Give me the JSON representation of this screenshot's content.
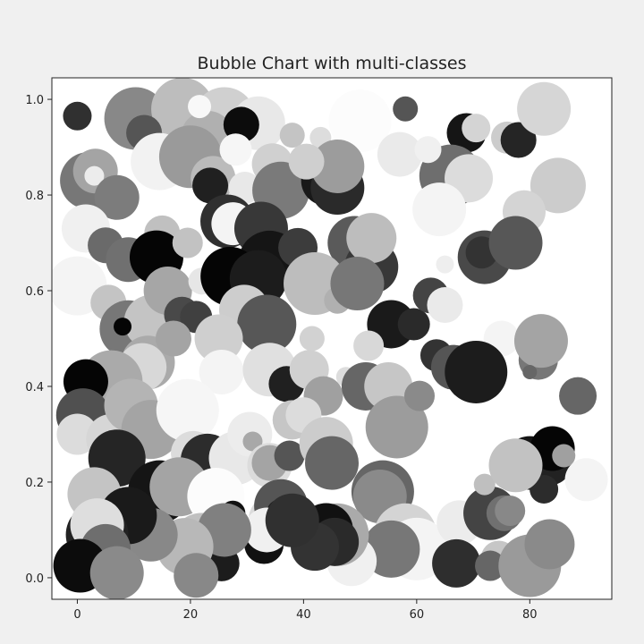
{
  "chart_data": {
    "type": "scatter",
    "variant": "bubble",
    "title": "Bubble Chart with multi-classes",
    "xlabel": "",
    "ylabel": "",
    "xlim": [
      -4.5,
      94.5
    ],
    "ylim": [
      -0.045,
      1.045
    ],
    "xticks": [
      0,
      20,
      40,
      60,
      80
    ],
    "yticks": [
      0.0,
      0.2,
      0.4,
      0.6,
      0.8,
      1.0
    ],
    "ytick_labels": [
      "0.0",
      "0.2",
      "0.4",
      "0.6",
      "0.8",
      "1.0"
    ],
    "grid": false,
    "legend": "none",
    "colors": {
      "figure_bg": "#f0f0f0",
      "axes_bg": "#ffffff",
      "axis": "#222222"
    },
    "bubbles": [
      {
        "x": 10.3,
        "y": 0.96,
        "r": 35,
        "gray": "#888888"
      },
      {
        "x": 18.6,
        "y": 0.98,
        "r": 35,
        "gray": "#bdbdbd"
      },
      {
        "x": 26.0,
        "y": 0.96,
        "r": 35,
        "gray": "#d0d0d0"
      },
      {
        "x": 32.0,
        "y": 0.95,
        "r": 30,
        "gray": "#e8e8e8"
      },
      {
        "x": 11.8,
        "y": 0.93,
        "r": 20,
        "gray": "#555555"
      },
      {
        "x": 23.0,
        "y": 0.92,
        "r": 30,
        "gray": "#b0b0b0"
      },
      {
        "x": 29.0,
        "y": 0.947,
        "r": 20,
        "gray": "#0c0c0c"
      },
      {
        "x": 21.6,
        "y": 0.985,
        "r": 13,
        "gray": "#f8f8f8"
      },
      {
        "x": 0.0,
        "y": 0.965,
        "r": 16,
        "gray": "#303030"
      },
      {
        "x": 58.0,
        "y": 0.98,
        "r": 14,
        "gray": "#555555"
      },
      {
        "x": 50.0,
        "y": 0.955,
        "r": 35,
        "gray": "#fcfcfc"
      },
      {
        "x": 43.0,
        "y": 0.92,
        "r": 12,
        "gray": "#dddddd"
      },
      {
        "x": 38.0,
        "y": 0.925,
        "r": 14,
        "gray": "#c4c4c4"
      },
      {
        "x": 68.8,
        "y": 0.93,
        "r": 22,
        "gray": "#151515"
      },
      {
        "x": 70.5,
        "y": 0.94,
        "r": 16,
        "gray": "#d4d4d4"
      },
      {
        "x": 76.0,
        "y": 0.92,
        "r": 18,
        "gray": "#cccccc"
      },
      {
        "x": 78.0,
        "y": 0.915,
        "r": 20,
        "gray": "#252525"
      },
      {
        "x": 82.5,
        "y": 0.98,
        "r": 30,
        "gray": "#d6d6d6"
      },
      {
        "x": 85.0,
        "y": 0.82,
        "r": 31,
        "gray": "#cccccc"
      },
      {
        "x": 79.0,
        "y": 0.765,
        "r": 24,
        "gray": "#d4d4d4"
      },
      {
        "x": 66.0,
        "y": 0.84,
        "r": 35,
        "gray": "#6e6e6e"
      },
      {
        "x": 69.2,
        "y": 0.835,
        "r": 27,
        "gray": "#dcdcdc"
      },
      {
        "x": 64.0,
        "y": 0.77,
        "r": 30,
        "gray": "#f4f4f4"
      },
      {
        "x": 57.0,
        "y": 0.885,
        "r": 25,
        "gray": "#eaeaea"
      },
      {
        "x": 62.0,
        "y": 0.895,
        "r": 15,
        "gray": "#f0f0f0"
      },
      {
        "x": 2.0,
        "y": 0.83,
        "r": 32,
        "gray": "#777777"
      },
      {
        "x": 3.2,
        "y": 0.85,
        "r": 25,
        "gray": "#a4a4a4"
      },
      {
        "x": 3.0,
        "y": 0.84,
        "r": 11,
        "gray": "#ececec"
      },
      {
        "x": 7.0,
        "y": 0.795,
        "r": 25,
        "gray": "#7c7c7c"
      },
      {
        "x": 14.5,
        "y": 0.87,
        "r": 32,
        "gray": "#f2f2f2"
      },
      {
        "x": 20.0,
        "y": 0.88,
        "r": 35,
        "gray": "#9a9a9a"
      },
      {
        "x": 24.0,
        "y": 0.835,
        "r": 25,
        "gray": "#bbbbbb"
      },
      {
        "x": 23.5,
        "y": 0.82,
        "r": 20,
        "gray": "#202020"
      },
      {
        "x": 28.0,
        "y": 0.895,
        "r": 18,
        "gray": "#f6f6f6"
      },
      {
        "x": 29.6,
        "y": 0.815,
        "r": 18,
        "gray": "#e8e8e8"
      },
      {
        "x": 34.5,
        "y": 0.865,
        "r": 23,
        "gray": "#d0d0d0"
      },
      {
        "x": 36.0,
        "y": 0.81,
        "r": 32,
        "gray": "#7a7a7a"
      },
      {
        "x": 44.0,
        "y": 0.83,
        "r": 28,
        "gray": "#191919"
      },
      {
        "x": 46.0,
        "y": 0.815,
        "r": 30,
        "gray": "#2a2a2a"
      },
      {
        "x": 46.0,
        "y": 0.86,
        "r": 30,
        "gray": "#9c9c9c"
      },
      {
        "x": 40.5,
        "y": 0.87,
        "r": 20,
        "gray": "#cfcfcf"
      },
      {
        "x": 1.5,
        "y": 0.73,
        "r": 27,
        "gray": "#f0f0f0"
      },
      {
        "x": 5.0,
        "y": 0.695,
        "r": 20,
        "gray": "#6a6a6a"
      },
      {
        "x": 9.0,
        "y": 0.665,
        "r": 25,
        "gray": "#707070"
      },
      {
        "x": 15.0,
        "y": 0.72,
        "r": 20,
        "gray": "#c0c0c0"
      },
      {
        "x": 14.0,
        "y": 0.67,
        "r": 30,
        "gray": "#050505"
      },
      {
        "x": 19.5,
        "y": 0.7,
        "r": 17,
        "gray": "#c2c2c2"
      },
      {
        "x": 26.5,
        "y": 0.745,
        "r": 30,
        "gray": "#303030"
      },
      {
        "x": 27.5,
        "y": 0.74,
        "r": 24,
        "gray": "#f4f4f4"
      },
      {
        "x": 32.5,
        "y": 0.73,
        "r": 30,
        "gray": "#383838"
      },
      {
        "x": 34.0,
        "y": 0.66,
        "r": 35,
        "gray": "#151515"
      },
      {
        "x": 39.0,
        "y": 0.69,
        "r": 22,
        "gray": "#3c3c3c"
      },
      {
        "x": 49.0,
        "y": 0.7,
        "r": 30,
        "gray": "#5a5a5a"
      },
      {
        "x": 52.0,
        "y": 0.65,
        "r": 30,
        "gray": "#383838"
      },
      {
        "x": 52.0,
        "y": 0.71,
        "r": 28,
        "gray": "#bdbdbd"
      },
      {
        "x": 72.0,
        "y": 0.67,
        "r": 30,
        "gray": "#494949"
      },
      {
        "x": 71.5,
        "y": 0.68,
        "r": 18,
        "gray": "#333333"
      },
      {
        "x": 77.5,
        "y": 0.7,
        "r": 30,
        "gray": "#575757"
      },
      {
        "x": 65.0,
        "y": 0.655,
        "r": 10,
        "gray": "#eeeeee"
      },
      {
        "x": 0.0,
        "y": 0.61,
        "r": 33,
        "gray": "#f4f4f4"
      },
      {
        "x": 5.5,
        "y": 0.575,
        "r": 20,
        "gray": "#c4c4c4"
      },
      {
        "x": 9.0,
        "y": 0.52,
        "r": 32,
        "gray": "#777777"
      },
      {
        "x": 13.0,
        "y": 0.535,
        "r": 30,
        "gray": "#c4c4c4"
      },
      {
        "x": 16.0,
        "y": 0.6,
        "r": 27,
        "gray": "#a6a6a6"
      },
      {
        "x": 18.5,
        "y": 0.55,
        "r": 20,
        "gray": "#494949"
      },
      {
        "x": 21.0,
        "y": 0.545,
        "r": 18,
        "gray": "#404040"
      },
      {
        "x": 22.0,
        "y": 0.62,
        "r": 15,
        "gray": "#e6e6e6"
      },
      {
        "x": 27.0,
        "y": 0.63,
        "r": 33,
        "gray": "#050505"
      },
      {
        "x": 32.0,
        "y": 0.625,
        "r": 32,
        "gray": "#1c1c1c"
      },
      {
        "x": 29.5,
        "y": 0.56,
        "r": 28,
        "gray": "#cdcdcd"
      },
      {
        "x": 33.5,
        "y": 0.53,
        "r": 33,
        "gray": "#575757"
      },
      {
        "x": 42.0,
        "y": 0.615,
        "r": 35,
        "gray": "#bdbdbd"
      },
      {
        "x": 46.0,
        "y": 0.58,
        "r": 15,
        "gray": "#b0b0b0"
      },
      {
        "x": 49.5,
        "y": 0.615,
        "r": 30,
        "gray": "#777777"
      },
      {
        "x": 55.5,
        "y": 0.53,
        "r": 27,
        "gray": "#1a1a1a"
      },
      {
        "x": 59.5,
        "y": 0.53,
        "r": 18,
        "gray": "#2a2a2a"
      },
      {
        "x": 62.5,
        "y": 0.59,
        "r": 20,
        "gray": "#444444"
      },
      {
        "x": 65.0,
        "y": 0.57,
        "r": 20,
        "gray": "#eaeaea"
      },
      {
        "x": 75.0,
        "y": 0.5,
        "r": 20,
        "gray": "#f4f4f4"
      },
      {
        "x": 83.0,
        "y": 0.51,
        "r": 15,
        "gray": "#1c1c1c"
      },
      {
        "x": 81.5,
        "y": 0.455,
        "r": 22,
        "gray": "#777777"
      },
      {
        "x": 82.0,
        "y": 0.495,
        "r": 30,
        "gray": "#a4a4a4"
      },
      {
        "x": 80.0,
        "y": 0.43,
        "r": 8,
        "gray": "#666666"
      },
      {
        "x": 8.0,
        "y": 0.525,
        "r": 10,
        "gray": "#050505"
      },
      {
        "x": 12.5,
        "y": 0.45,
        "r": 30,
        "gray": "#aaaaaa"
      },
      {
        "x": 11.5,
        "y": 0.44,
        "r": 27,
        "gray": "#d8d8d8"
      },
      {
        "x": 6.0,
        "y": 0.41,
        "r": 35,
        "gray": "#aaaaaa"
      },
      {
        "x": 1.5,
        "y": 0.41,
        "r": 25,
        "gray": "#050505"
      },
      {
        "x": 17.0,
        "y": 0.5,
        "r": 20,
        "gray": "#a4a4a4"
      },
      {
        "x": 25.0,
        "y": 0.5,
        "r": 27,
        "gray": "#cfcfcf"
      },
      {
        "x": 25.5,
        "y": 0.43,
        "r": 25,
        "gray": "#f4f4f4"
      },
      {
        "x": 34.0,
        "y": 0.435,
        "r": 30,
        "gray": "#e0e0e0"
      },
      {
        "x": 37.0,
        "y": 0.405,
        "r": 20,
        "gray": "#202020"
      },
      {
        "x": 41.5,
        "y": 0.5,
        "r": 14,
        "gray": "#d2d2d2"
      },
      {
        "x": 41.0,
        "y": 0.435,
        "r": 22,
        "gray": "#d0d0d0"
      },
      {
        "x": 43.5,
        "y": 0.38,
        "r": 22,
        "gray": "#a0a0a0"
      },
      {
        "x": 47.5,
        "y": 0.42,
        "r": 11,
        "gray": "#dddddd"
      },
      {
        "x": 51.5,
        "y": 0.485,
        "r": 17,
        "gray": "#d8d8d8"
      },
      {
        "x": 51.0,
        "y": 0.4,
        "r": 27,
        "gray": "#666666"
      },
      {
        "x": 55.0,
        "y": 0.4,
        "r": 27,
        "gray": "#c6c6c6"
      },
      {
        "x": 56.5,
        "y": 0.315,
        "r": 35,
        "gray": "#9c9c9c"
      },
      {
        "x": 60.5,
        "y": 0.38,
        "r": 17,
        "gray": "#8a8a8a"
      },
      {
        "x": 63.5,
        "y": 0.465,
        "r": 18,
        "gray": "#333333"
      },
      {
        "x": 66.5,
        "y": 0.44,
        "r": 25,
        "gray": "#555555"
      },
      {
        "x": 70.5,
        "y": 0.43,
        "r": 35,
        "gray": "#1c1c1c"
      },
      {
        "x": 88.5,
        "y": 0.38,
        "r": 21,
        "gray": "#666666"
      },
      {
        "x": 1.0,
        "y": 0.34,
        "r": 30,
        "gray": "#505050"
      },
      {
        "x": 0.0,
        "y": 0.3,
        "r": 23,
        "gray": "#dcdcdc"
      },
      {
        "x": 6.0,
        "y": 0.29,
        "r": 28,
        "gray": "#d6d6d6"
      },
      {
        "x": 9.5,
        "y": 0.36,
        "r": 30,
        "gray": "#b4b4b4"
      },
      {
        "x": 13.0,
        "y": 0.31,
        "r": 33,
        "gray": "#a4a4a4"
      },
      {
        "x": 19.5,
        "y": 0.35,
        "r": 35,
        "gray": "#f6f6f6"
      },
      {
        "x": 20.5,
        "y": 0.26,
        "r": 25,
        "gray": "#dcdcdc"
      },
      {
        "x": 23.0,
        "y": 0.245,
        "r": 30,
        "gray": "#2c2c2c"
      },
      {
        "x": 28.0,
        "y": 0.25,
        "r": 30,
        "gray": "#e8e8e8"
      },
      {
        "x": 30.5,
        "y": 0.3,
        "r": 25,
        "gray": "#ececec"
      },
      {
        "x": 31.0,
        "y": 0.285,
        "r": 11,
        "gray": "#a8a8a8"
      },
      {
        "x": 34.0,
        "y": 0.235,
        "r": 25,
        "gray": "#dcdcdc"
      },
      {
        "x": 34.0,
        "y": 0.24,
        "r": 20,
        "gray": "#a4a4a4"
      },
      {
        "x": 37.5,
        "y": 0.255,
        "r": 17,
        "gray": "#555555"
      },
      {
        "x": 38.0,
        "y": 0.33,
        "r": 22,
        "gray": "#c6c6c6"
      },
      {
        "x": 40.0,
        "y": 0.34,
        "r": 20,
        "gray": "#dcdcdc"
      },
      {
        "x": 44.0,
        "y": 0.28,
        "r": 30,
        "gray": "#cccccc"
      },
      {
        "x": 45.0,
        "y": 0.24,
        "r": 30,
        "gray": "#666666"
      },
      {
        "x": 7.0,
        "y": 0.25,
        "r": 32,
        "gray": "#252525"
      },
      {
        "x": 14.5,
        "y": 0.18,
        "r": 35,
        "gray": "#151515"
      },
      {
        "x": 18.0,
        "y": 0.19,
        "r": 33,
        "gray": "#a4a4a4"
      },
      {
        "x": 24.5,
        "y": 0.17,
        "r": 32,
        "gray": "#fcfcfc"
      },
      {
        "x": 3.0,
        "y": 0.175,
        "r": 30,
        "gray": "#c4c4c4"
      },
      {
        "x": 27.5,
        "y": 0.135,
        "r": 14,
        "gray": "#111111"
      },
      {
        "x": 35.0,
        "y": 0.12,
        "r": 30,
        "gray": "#dcdcdc"
      },
      {
        "x": 36.0,
        "y": 0.15,
        "r": 30,
        "gray": "#555555"
      },
      {
        "x": 36.0,
        "y": 0.135,
        "r": 16,
        "gray": "#1c1c1c"
      },
      {
        "x": 54.0,
        "y": 0.18,
        "r": 35,
        "gray": "#666666"
      },
      {
        "x": 53.5,
        "y": 0.17,
        "r": 30,
        "gray": "#8a8a8a"
      },
      {
        "x": 58.0,
        "y": 0.09,
        "r": 35,
        "gray": "#d4d4d4"
      },
      {
        "x": 60.0,
        "y": 0.06,
        "r": 35,
        "gray": "#f4f4f4"
      },
      {
        "x": 55.5,
        "y": 0.06,
        "r": 32,
        "gray": "#777777"
      },
      {
        "x": 67.5,
        "y": 0.115,
        "r": 25,
        "gray": "#ececec"
      },
      {
        "x": 73.0,
        "y": 0.135,
        "r": 30,
        "gray": "#444444"
      },
      {
        "x": 75.5,
        "y": 0.135,
        "r": 20,
        "gray": "#707070"
      },
      {
        "x": 72.0,
        "y": 0.195,
        "r": 12,
        "gray": "#bfbfbf"
      },
      {
        "x": 76.5,
        "y": 0.14,
        "r": 17,
        "gray": "#888888"
      },
      {
        "x": 80.0,
        "y": 0.24,
        "r": 30,
        "gray": "#151515"
      },
      {
        "x": 83.5,
        "y": 0.24,
        "r": 25,
        "gray": "#222222"
      },
      {
        "x": 84.0,
        "y": 0.27,
        "r": 25,
        "gray": "#050505"
      },
      {
        "x": 82.5,
        "y": 0.185,
        "r": 16,
        "gray": "#2c2c2c"
      },
      {
        "x": 77.5,
        "y": 0.235,
        "r": 30,
        "gray": "#c2c2c2"
      },
      {
        "x": 86.0,
        "y": 0.255,
        "r": 13,
        "gray": "#a0a0a0"
      },
      {
        "x": 90.0,
        "y": 0.205,
        "r": 24,
        "gray": "#f4f4f4"
      },
      {
        "x": 67.0,
        "y": 0.03,
        "r": 27,
        "gray": "#2e2e2e"
      },
      {
        "x": 74.5,
        "y": 0.04,
        "r": 20,
        "gray": "#c6c6c6"
      },
      {
        "x": 73.0,
        "y": 0.025,
        "r": 17,
        "gray": "#666666"
      },
      {
        "x": 80.0,
        "y": 0.025,
        "r": 35,
        "gray": "#9a9a9a"
      },
      {
        "x": 83.5,
        "y": 0.07,
        "r": 28,
        "gray": "#8a8a8a"
      },
      {
        "x": 48.5,
        "y": 0.035,
        "r": 28,
        "gray": "#f0f0f0"
      },
      {
        "x": 46.0,
        "y": 0.09,
        "r": 35,
        "gray": "#aaaaaa"
      },
      {
        "x": 44.0,
        "y": 0.1,
        "r": 30,
        "gray": "#111111"
      },
      {
        "x": 45.5,
        "y": 0.075,
        "r": 27,
        "gray": "#2a2a2a"
      },
      {
        "x": 42.0,
        "y": 0.065,
        "r": 27,
        "gray": "#333333"
      },
      {
        "x": 33.0,
        "y": 0.07,
        "r": 22,
        "gray": "#111111"
      },
      {
        "x": 33.5,
        "y": 0.1,
        "r": 25,
        "gray": "#f0f0f0"
      },
      {
        "x": 38.0,
        "y": 0.12,
        "r": 30,
        "gray": "#303030"
      },
      {
        "x": 22.0,
        "y": 0.07,
        "r": 35,
        "gray": "#c0c0c0"
      },
      {
        "x": 25.5,
        "y": 0.03,
        "r": 20,
        "gray": "#1c1c1c"
      },
      {
        "x": 26.0,
        "y": 0.1,
        "r": 30,
        "gray": "#808080"
      },
      {
        "x": 19.0,
        "y": 0.065,
        "r": 32,
        "gray": "#b8b8b8"
      },
      {
        "x": 21.0,
        "y": 0.005,
        "r": 25,
        "gray": "#888888"
      },
      {
        "x": 13.0,
        "y": 0.09,
        "r": 30,
        "gray": "#888888"
      },
      {
        "x": 9.0,
        "y": 0.13,
        "r": 32,
        "gray": "#1a1a1a"
      },
      {
        "x": 3.5,
        "y": 0.09,
        "r": 35,
        "gray": "#222222"
      },
      {
        "x": 3.5,
        "y": 0.11,
        "r": 30,
        "gray": "#dedede"
      },
      {
        "x": 5.0,
        "y": 0.06,
        "r": 28,
        "gray": "#6e6e6e"
      },
      {
        "x": 0.5,
        "y": 0.025,
        "r": 30,
        "gray": "#0c0c0c"
      },
      {
        "x": 7.0,
        "y": 0.01,
        "r": 30,
        "gray": "#8a8a8a"
      }
    ]
  }
}
